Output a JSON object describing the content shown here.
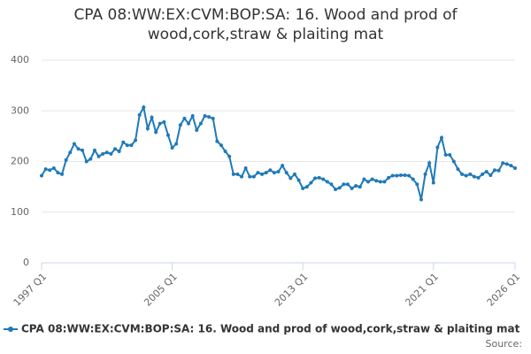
{
  "chart_data": {
    "type": "line",
    "title": "CPA 08:WW:EX:CVM:BOP:SA: 16. Wood and prod of wood,cork,straw & plaiting mat",
    "source": "Source:",
    "categories": [
      "1997 Q1",
      null,
      null,
      null,
      null,
      null,
      null,
      null,
      null,
      null,
      null,
      null,
      null,
      null,
      null,
      null,
      null,
      null,
      null,
      null,
      null,
      null,
      null,
      null,
      null,
      null,
      null,
      null,
      null,
      null,
      null,
      null,
      "2005 Q1",
      null,
      null,
      null,
      null,
      null,
      null,
      null,
      null,
      null,
      null,
      null,
      null,
      null,
      null,
      null,
      null,
      null,
      null,
      null,
      null,
      null,
      null,
      null,
      null,
      null,
      null,
      null,
      null,
      null,
      null,
      null,
      "2013 Q1",
      null,
      null,
      null,
      null,
      null,
      null,
      null,
      null,
      null,
      null,
      null,
      null,
      null,
      null,
      null,
      null,
      null,
      null,
      null,
      null,
      null,
      null,
      null,
      null,
      null,
      null,
      null,
      null,
      null,
      null,
      null,
      "2021 Q1",
      null,
      null,
      null,
      null,
      null,
      null,
      null,
      null,
      null,
      null,
      null,
      null,
      null,
      null,
      null,
      null,
      null,
      null,
      null,
      "2026 Q1"
    ],
    "series": [
      {
        "name": "CPA 08:WW:EX:CVM:BOP:SA: 16. Wood and prod of wood,cork,straw & plaiting mat",
        "color": "#1f7ab8",
        "values": [
          172,
          185,
          183,
          187,
          178,
          175,
          203,
          218,
          235,
          225,
          222,
          200,
          205,
          222,
          210,
          215,
          218,
          215,
          225,
          220,
          238,
          232,
          232,
          242,
          292,
          307,
          265,
          287,
          258,
          275,
          278,
          252,
          227,
          235,
          272,
          285,
          275,
          290,
          262,
          275,
          290,
          288,
          285,
          240,
          232,
          220,
          210,
          175,
          175,
          170,
          187,
          170,
          170,
          178,
          175,
          178,
          183,
          178,
          180,
          192,
          178,
          167,
          175,
          163,
          147,
          150,
          158,
          167,
          168,
          165,
          160,
          155,
          145,
          148,
          155,
          155,
          147,
          152,
          150,
          165,
          160,
          165,
          162,
          160,
          160,
          168,
          172,
          172,
          173,
          173,
          172,
          165,
          155,
          125,
          175,
          197,
          158,
          228,
          247,
          213,
          213,
          200,
          185,
          175,
          172,
          175,
          170,
          168,
          175,
          180,
          173,
          183,
          182,
          197,
          195,
          192,
          187
        ]
      }
    ],
    "ylim": [
      0,
      400
    ],
    "yticks": [
      0,
      100,
      200,
      300,
      400
    ],
    "grid": true
  }
}
